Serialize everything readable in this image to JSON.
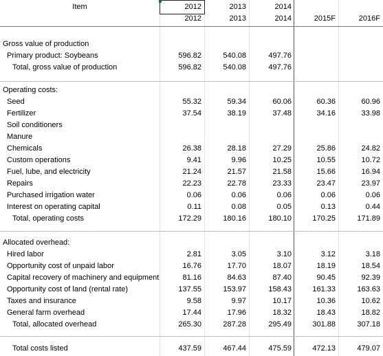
{
  "header": {
    "item": "Item",
    "years_top": [
      "2012",
      "2013",
      "2014"
    ],
    "years": [
      "2012",
      "2013",
      "2014",
      "2015F",
      "2016F"
    ]
  },
  "rows": [
    {
      "label": "Gross value of production"
    },
    {
      "label": "Primary product:  Soybeans",
      "values": [
        "596.82",
        "540.08",
        "497.76"
      ]
    },
    {
      "label": "Total, gross value of production",
      "values": [
        "596.82",
        "540.08",
        "497.76"
      ]
    },
    {
      "label": "Operating costs:"
    },
    {
      "label": "Seed",
      "values": [
        "55.32",
        "59.34",
        "60.06",
        "60.36",
        "60.96"
      ]
    },
    {
      "label": "Fertilizer",
      "values": [
        "37.54",
        "38.19",
        "37.48",
        "34.16",
        "33.98"
      ]
    },
    {
      "label": "Soil conditioners"
    },
    {
      "label": "Manure"
    },
    {
      "label": "Chemicals",
      "values": [
        "26.38",
        "28.18",
        "27.29",
        "25.86",
        "24.82"
      ]
    },
    {
      "label": "Custom operations",
      "values": [
        "9.41",
        "9.96",
        "10.25",
        "10.55",
        "10.72"
      ]
    },
    {
      "label": "Fuel, lube, and electricity",
      "values": [
        "21.24",
        "21.57",
        "21.58",
        "15.66",
        "16.94"
      ]
    },
    {
      "label": "Repairs",
      "values": [
        "22.23",
        "22.78",
        "23.33",
        "23.47",
        "23.97"
      ]
    },
    {
      "label": "Purchased irrigation water",
      "values": [
        "0.06",
        "0.06",
        "0.06",
        "0.06",
        "0.06"
      ]
    },
    {
      "label": "Interest on operating capital",
      "values": [
        "0.11",
        "0.08",
        "0.05",
        "0.13",
        "0.44"
      ]
    },
    {
      "label": "Total, operating costs",
      "values": [
        "172.29",
        "180.16",
        "180.10",
        "170.25",
        "171.89"
      ]
    },
    {
      "label": "Allocated overhead:"
    },
    {
      "label": "Hired labor",
      "values": [
        "2.81",
        "3.05",
        "3.10",
        "3.12",
        "3.18"
      ]
    },
    {
      "label": "Opportunity cost of unpaid labor",
      "values": [
        "16.76",
        "17.70",
        "18.07",
        "18.19",
        "18.54"
      ]
    },
    {
      "label": "Capital recovery of machinery and equipment",
      "values": [
        "81.16",
        "84.63",
        "87.40",
        "90.45",
        "92.39"
      ]
    },
    {
      "label": "Opportunity cost of land (rental rate)",
      "values": [
        "137.55",
        "153.97",
        "158.43",
        "161.33",
        "163.63"
      ]
    },
    {
      "label": "Taxes and insurance",
      "values": [
        "9.58",
        "9.97",
        "10.17",
        "10.36",
        "10.62"
      ]
    },
    {
      "label": "General farm overhead",
      "values": [
        "17.44",
        "17.96",
        "18.32",
        "18.43",
        "18.82"
      ]
    },
    {
      "label": "Total, allocated overhead",
      "values": [
        "265.30",
        "287.28",
        "295.49",
        "301.88",
        "307.18"
      ]
    },
    {
      "label": "Total costs listed",
      "values": [
        "437.59",
        "467.44",
        "475.59",
        "472.13",
        "479.07"
      ]
    }
  ]
}
